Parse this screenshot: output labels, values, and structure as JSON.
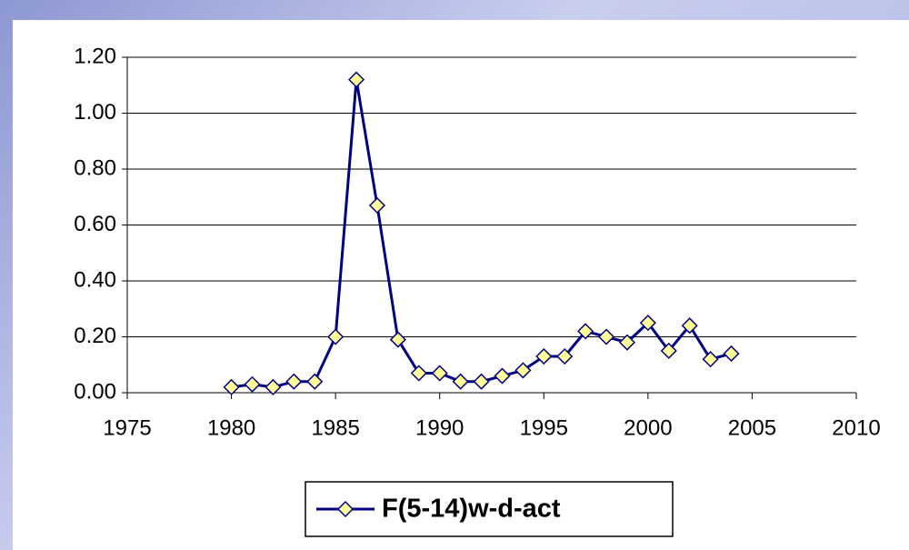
{
  "chart_data": {
    "type": "line",
    "x": [
      1980,
      1981,
      1982,
      1983,
      1984,
      1985,
      1986,
      1987,
      1988,
      1989,
      1990,
      1991,
      1992,
      1993,
      1994,
      1995,
      1996,
      1997,
      1998,
      1999,
      2000,
      2001,
      2002,
      2003,
      2004
    ],
    "series": [
      {
        "name": "F(5-14)w-d-act",
        "color": "#000080",
        "marker_color": "#ffff99",
        "values": [
          0.02,
          0.03,
          0.02,
          0.04,
          0.04,
          0.2,
          1.12,
          0.67,
          0.19,
          0.07,
          0.07,
          0.04,
          0.04,
          0.06,
          0.08,
          0.13,
          0.13,
          0.22,
          0.2,
          0.18,
          0.25,
          0.15,
          0.24,
          0.12,
          0.14
        ]
      }
    ],
    "xlim": [
      1975,
      2010
    ],
    "xticks": [
      1975,
      1980,
      1985,
      1990,
      1995,
      2000,
      2005,
      2010
    ],
    "ylim": [
      0,
      1.2
    ],
    "yticks": [
      {
        "value": 0,
        "label": "0.00"
      },
      {
        "value": 0.2,
        "label": "0.20"
      },
      {
        "value": 0.4,
        "label": "0.40"
      },
      {
        "value": 0.6,
        "label": "0.60"
      },
      {
        "value": 0.8,
        "label": "0.80"
      },
      {
        "value": 1.0,
        "label": "1.00"
      },
      {
        "value": 1.2,
        "label": "1.20"
      }
    ],
    "grid": true,
    "legend": "bottom"
  }
}
